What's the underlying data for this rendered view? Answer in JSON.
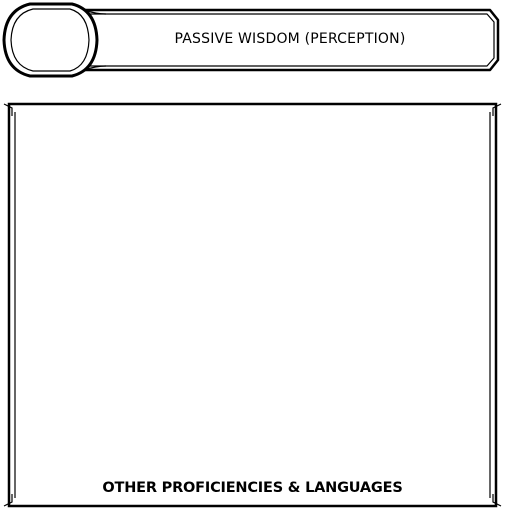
{
  "passive_wisdom": {
    "label": "PASSIVE WISDOM (PERCEPTION)",
    "value": ""
  },
  "other_proficiencies": {
    "title": "OTHER PROFICIENCIES & LANGUAGES",
    "value": ""
  },
  "colors": {
    "ink": "#000000",
    "paper": "#ffffff"
  }
}
